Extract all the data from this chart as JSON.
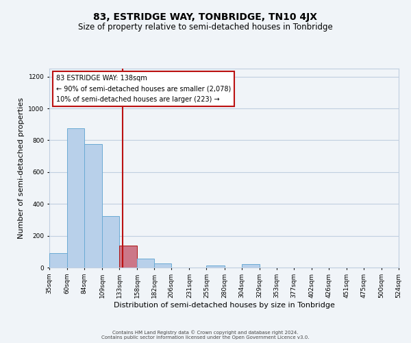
{
  "title": "83, ESTRIDGE WAY, TONBRIDGE, TN10 4JX",
  "subtitle": "Size of property relative to semi-detached houses in Tonbridge",
  "xlabel": "Distribution of semi-detached houses by size in Tonbridge",
  "ylabel": "Number of semi-detached properties",
  "bar_values": [
    90,
    875,
    775,
    325,
    140,
    55,
    25,
    0,
    0,
    15,
    0,
    20,
    0,
    0,
    0,
    0,
    0,
    0,
    0,
    0
  ],
  "bin_labels": [
    "35sqm",
    "60sqm",
    "84sqm",
    "109sqm",
    "133sqm",
    "158sqm",
    "182sqm",
    "206sqm",
    "231sqm",
    "255sqm",
    "280sqm",
    "304sqm",
    "329sqm",
    "353sqm",
    "377sqm",
    "402sqm",
    "426sqm",
    "451sqm",
    "475sqm",
    "500sqm",
    "524sqm"
  ],
  "bin_edges": [
    35,
    60,
    84,
    109,
    133,
    158,
    182,
    206,
    231,
    255,
    280,
    304,
    329,
    353,
    377,
    402,
    426,
    451,
    475,
    500,
    524
  ],
  "bar_color": "#b8d0ea",
  "bar_edge_color": "#6aaad4",
  "highlight_bar_color": "#cc7788",
  "highlight_bar_edge_color": "#aa1111",
  "property_bin_index": 4,
  "vline_x": 138,
  "vline_color": "#bb1111",
  "annotation_title": "83 ESTRIDGE WAY: 138sqm",
  "annotation_line1": "← 90% of semi-detached houses are smaller (2,078)",
  "annotation_line2": "10% of semi-detached houses are larger (223) →",
  "annotation_box_facecolor": "#ffffff",
  "annotation_box_edgecolor": "#bb1111",
  "ylim": [
    0,
    1250
  ],
  "yticks": [
    0,
    200,
    400,
    600,
    800,
    1000,
    1200
  ],
  "footer1": "Contains HM Land Registry data © Crown copyright and database right 2024.",
  "footer2": "Contains public sector information licensed under the Open Government Licence v3.0.",
  "background_color": "#f0f4f8",
  "grid_color": "#c0cfe0",
  "title_fontsize": 10,
  "subtitle_fontsize": 8.5,
  "axis_label_fontsize": 8,
  "tick_fontsize": 6.5,
  "annotation_fontsize": 7,
  "footer_fontsize": 5
}
